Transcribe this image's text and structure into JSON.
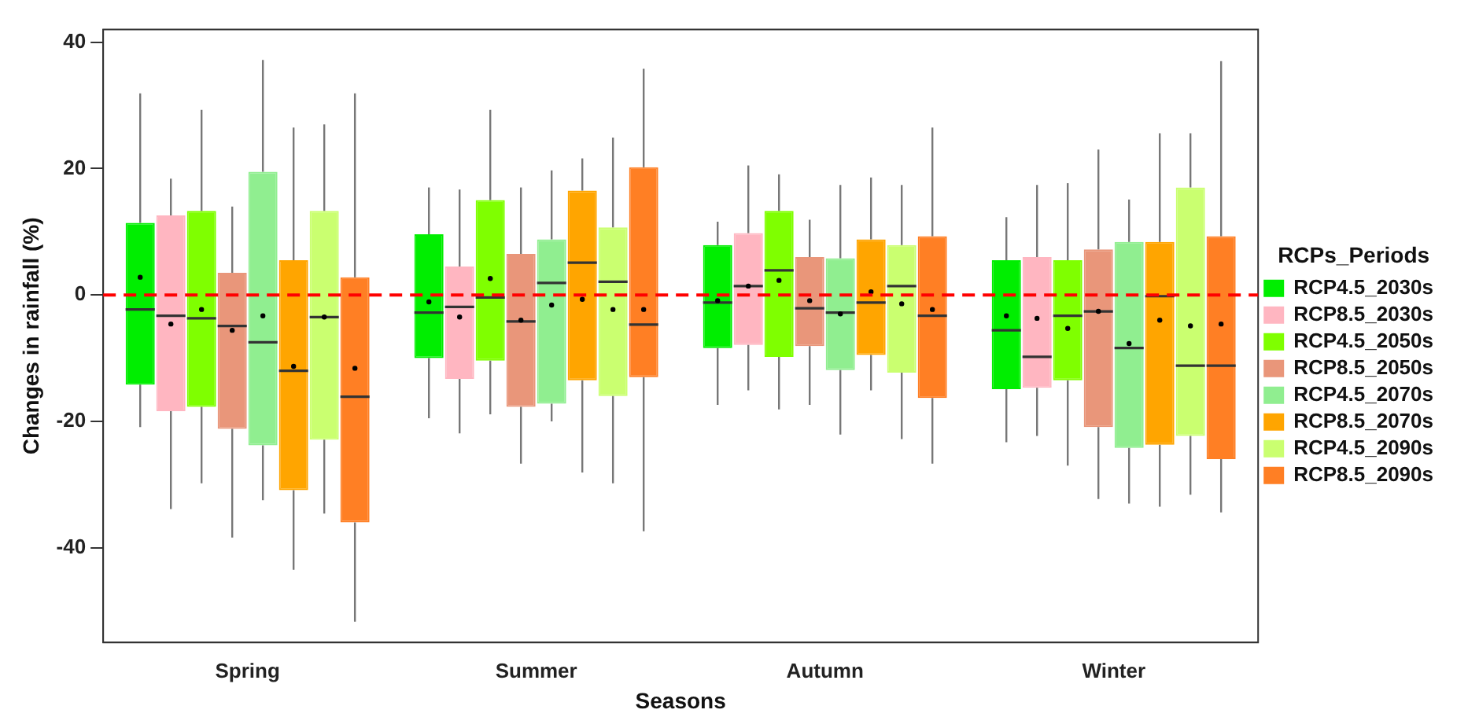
{
  "chart_data": {
    "type": "box",
    "xlabel": "Seasons",
    "ylabel": "Changes in rainfall (%)",
    "legend_title": "RCPs_Periods",
    "legend": "right",
    "grid": false,
    "categories": [
      "Spring",
      "Summer",
      "Autumn",
      "Winter"
    ],
    "ylim": [
      -55,
      42
    ],
    "yticks": [
      -40,
      -20,
      0,
      20,
      40
    ],
    "ref_lines": [
      {
        "axis": "y",
        "value": 0,
        "color": "#ff0000",
        "line_style": "dashed"
      }
    ],
    "series": [
      {
        "name": "RCP4.5_2030s",
        "color": "#00ee00",
        "boxes": [
          {
            "low": -20.9,
            "q1": -14.2,
            "median": -2.3,
            "q3": 11.4,
            "high": 31.9,
            "mean": 2.8
          },
          {
            "low": -19.5,
            "q1": -10,
            "median": -2.8,
            "q3": 9.6,
            "high": 17,
            "mean": -1.1
          },
          {
            "low": -17.4,
            "q1": -8.4,
            "median": -1.2,
            "q3": 7.9,
            "high": 11.6,
            "mean": -0.9
          },
          {
            "low": -23.3,
            "q1": -14.9,
            "median": -5.6,
            "q3": 5.5,
            "high": 12.3,
            "mean": -3.3
          }
        ]
      },
      {
        "name": "RCP8.5_2030s",
        "color": "#ffb6c1",
        "boxes": [
          {
            "low": -33.9,
            "q1": -18.4,
            "median": -3.3,
            "q3": 12.6,
            "high": 18.4,
            "mean": -4.6
          },
          {
            "low": -21.9,
            "q1": -13.3,
            "median": -1.9,
            "q3": 4.5,
            "high": 16.7,
            "mean": -3.5
          },
          {
            "low": -15.1,
            "q1": -7.9,
            "median": 1.4,
            "q3": 9.8,
            "high": 20.5,
            "mean": 1.4
          },
          {
            "low": -22.3,
            "q1": -14.7,
            "median": -9.8,
            "q3": 6,
            "high": 17.4,
            "mean": -3.7
          }
        ]
      },
      {
        "name": "RCP4.5_2050s",
        "color": "#7fff00",
        "boxes": [
          {
            "low": -29.8,
            "q1": -17.7,
            "median": -3.7,
            "q3": 13.3,
            "high": 29.3,
            "mean": -2.3
          },
          {
            "low": -18.9,
            "q1": -10.4,
            "median": -0.4,
            "q3": 15,
            "high": 29.3,
            "mean": 2.6
          },
          {
            "low": -18.1,
            "q1": -9.8,
            "median": 3.9,
            "q3": 13.3,
            "high": 19.1,
            "mean": 2.3
          },
          {
            "low": -27,
            "q1": -13.5,
            "median": -3.3,
            "q3": 5.5,
            "high": 17.7,
            "mean": -5.3
          }
        ]
      },
      {
        "name": "RCP8.5_2050s",
        "color": "#e9967a",
        "boxes": [
          {
            "low": -38.4,
            "q1": -21.2,
            "median": -4.9,
            "q3": 3.5,
            "high": 14,
            "mean": -5.6
          },
          {
            "low": -26.7,
            "q1": -17.7,
            "median": -4.2,
            "q3": 6.5,
            "high": 17,
            "mean": -4
          },
          {
            "low": -17.4,
            "q1": -8.1,
            "median": -2.1,
            "q3": 6,
            "high": 11.9,
            "mean": -0.9
          },
          {
            "low": -32.3,
            "q1": -20.9,
            "median": -2.6,
            "q3": 7.2,
            "high": 23,
            "mean": -2.6
          }
        ]
      },
      {
        "name": "RCP4.5_2070s",
        "color": "#90ee90",
        "boxes": [
          {
            "low": -32.5,
            "q1": -23.8,
            "median": -7.5,
            "q3": 19.5,
            "high": 37.2,
            "mean": -3.3
          },
          {
            "low": -20,
            "q1": -17.2,
            "median": 1.9,
            "q3": 8.8,
            "high": 19.7,
            "mean": -1.6
          },
          {
            "low": -22.1,
            "q1": -11.9,
            "median": -2.8,
            "q3": 5.8,
            "high": 17.4,
            "mean": -3
          },
          {
            "low": -33,
            "q1": -24.2,
            "median": -8.4,
            "q3": 8.4,
            "high": 15.1,
            "mean": -7.7
          }
        ]
      },
      {
        "name": "RCP8.5_2070s",
        "color": "#ffa500",
        "boxes": [
          {
            "low": -43.5,
            "q1": -30.9,
            "median": -12,
            "q3": 5.5,
            "high": 26.5,
            "mean": -11.3
          },
          {
            "low": -28.1,
            "q1": -13.5,
            "median": 5.1,
            "q3": 16.5,
            "high": 21.6,
            "mean": -0.7
          },
          {
            "low": -15.1,
            "q1": -9.5,
            "median": -1.2,
            "q3": 8.8,
            "high": 18.6,
            "mean": 0.5
          },
          {
            "low": -33.5,
            "q1": -23.7,
            "median": -0.2,
            "q3": 8.4,
            "high": 25.6,
            "mean": -4
          }
        ]
      },
      {
        "name": "RCP4.5_2090s",
        "color": "#caff70",
        "boxes": [
          {
            "low": -34.6,
            "q1": -22.9,
            "median": -3.5,
            "q3": 13.3,
            "high": 27,
            "mean": -3.5
          },
          {
            "low": -29.8,
            "q1": -16,
            "median": 2.1,
            "q3": 10.7,
            "high": 24.9,
            "mean": -2.3
          },
          {
            "low": -22.8,
            "q1": -12.3,
            "median": 1.4,
            "q3": 7.9,
            "high": 17.4,
            "mean": -1.4
          },
          {
            "low": -31.6,
            "q1": -22.3,
            "median": -11.2,
            "q3": 17,
            "high": 25.6,
            "mean": -4.9
          }
        ]
      },
      {
        "name": "RCP8.5_2090s",
        "color": "#ff7f24",
        "boxes": [
          {
            "low": -51.7,
            "q1": -36,
            "median": -16.1,
            "q3": 2.8,
            "high": 31.9,
            "mean": -11.6
          },
          {
            "low": -37.4,
            "q1": -13,
            "median": -4.7,
            "q3": 20.2,
            "high": 35.8,
            "mean": -2.3
          },
          {
            "low": -26.7,
            "q1": -16.3,
            "median": -3.3,
            "q3": 9.3,
            "high": 26.5,
            "mean": -2.3
          },
          {
            "low": -34.4,
            "q1": -26,
            "median": -11.2,
            "q3": 9.3,
            "high": 37,
            "mean": -4.6
          }
        ]
      }
    ]
  }
}
